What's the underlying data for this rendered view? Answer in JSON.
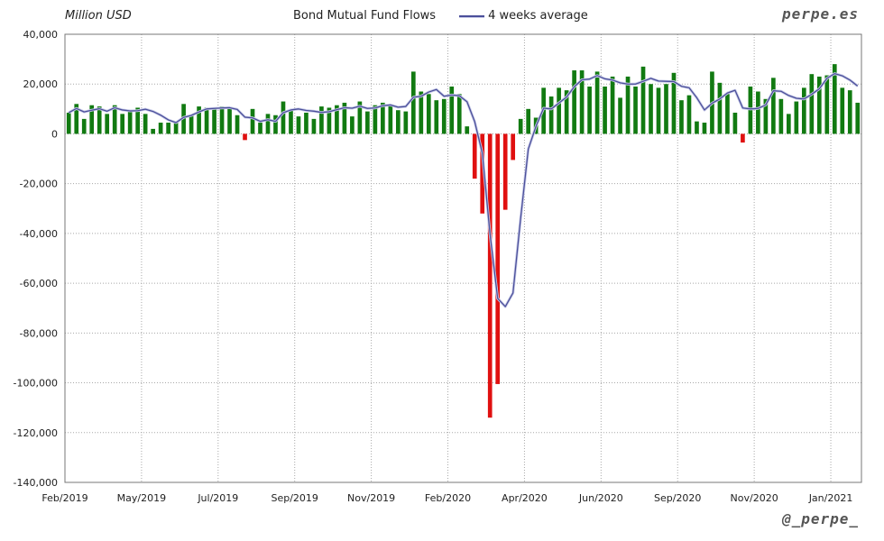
{
  "chart_data": {
    "type": "bar",
    "unit_label": "Million USD",
    "legend": {
      "bars": "Bond Mutual Fund Flows",
      "line": "4 weeks average"
    },
    "brand_top": "perpe.es",
    "brand_bottom": "@_perpe_",
    "ylim": [
      -140000,
      40000
    ],
    "yticks": [
      40000,
      20000,
      0,
      -20000,
      -40000,
      -60000,
      -80000,
      -100000,
      -120000,
      -140000
    ],
    "ytick_labels": [
      "40,000",
      "20,000",
      "0",
      "-20,000",
      "-40,000",
      "-60,000",
      "-80,000",
      "-100,000",
      "-120,000",
      "-140,000"
    ],
    "xtick_labels": [
      "Feb/2019",
      "May/2019",
      "Jul/2019",
      "Sep/2019",
      "Nov/2019",
      "Feb/2020",
      "Apr/2020",
      "Jun/2020",
      "Sep/2020",
      "Nov/2020",
      "Jan/2021"
    ],
    "xtick_weeks": [
      0,
      10,
      20,
      30,
      40,
      50,
      60,
      70,
      80,
      90,
      100
    ],
    "colors": {
      "positive": "#117a11",
      "negative": "#e01010",
      "line": "#4b4f9a",
      "grid": "#a8a8a8"
    },
    "series": [
      {
        "name": "Bond Mutual Fund Flows",
        "values": [
          8500,
          12000,
          6000,
          11500,
          11000,
          8000,
          11500,
          8000,
          9500,
          10500,
          8000,
          2000,
          4500,
          4500,
          4500,
          12000,
          7500,
          11000,
          10500,
          10500,
          11000,
          10500,
          7500,
          -2500,
          10000,
          4500,
          8000,
          7500,
          13000,
          9500,
          7000,
          8500,
          6000,
          11000,
          10500,
          11500,
          12500,
          7000,
          13000,
          9000,
          11500,
          12500,
          11500,
          9500,
          9000,
          25000,
          17000,
          16000,
          13500,
          14000,
          19000,
          16000,
          3000,
          -18000,
          -32000,
          -114000,
          -100500,
          -30500,
          -10500,
          6000,
          10000,
          6500,
          18500,
          15000,
          18500,
          17500,
          25500,
          25500,
          19000,
          25000,
          19000,
          23000,
          14500,
          23000,
          19000,
          27000,
          20000,
          18500,
          20000,
          24500,
          13500,
          15500,
          5000,
          4500,
          25000,
          20500,
          16000,
          8500,
          -3500,
          19000,
          17000,
          14000,
          22500,
          14000,
          8000,
          13000,
          18500,
          24000,
          23000,
          23500,
          28000,
          18500,
          17500,
          12500
        ]
      },
      {
        "name": "4 weeks average",
        "values": [
          8500,
          10200,
          8800,
          9500,
          10100,
          9100,
          10500,
          9600,
          9200,
          9300,
          9900,
          9000,
          7500,
          5600,
          4500,
          6600,
          7400,
          8800,
          10000,
          10200,
          10400,
          10500,
          9800,
          6700,
          6400,
          5000,
          5700,
          5000,
          8500,
          9600,
          10000,
          9400,
          9100,
          8600,
          8900,
          9700,
          10500,
          10300,
          11100,
          10200,
          10400,
          11300,
          11600,
          10700,
          11000,
          14700,
          15100,
          16800,
          17800,
          15100,
          15600,
          15300,
          12900,
          4900,
          -7800,
          -40200,
          -66100,
          -69400,
          -63900,
          -33900,
          -6100,
          3000,
          10300,
          10000,
          12400,
          14800,
          18900,
          21700,
          22000,
          23400,
          22100,
          21600,
          20500,
          20000,
          20000,
          21100,
          22300,
          21200,
          21100,
          21000,
          19100,
          18500,
          14500,
          9600,
          12300,
          14000,
          16400,
          17500,
          10400,
          10000,
          10200,
          11600,
          17300,
          17100,
          15400,
          14300,
          14000,
          15900,
          18100,
          22300,
          24200,
          23300,
          21600,
          19200
        ]
      }
    ]
  }
}
